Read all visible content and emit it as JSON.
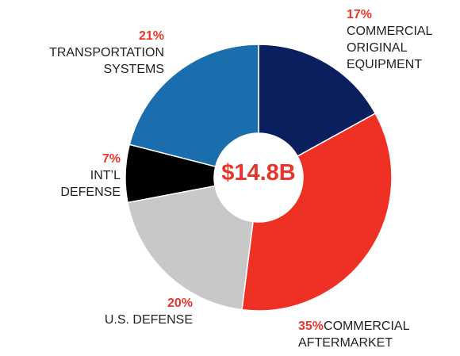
{
  "chart_data": {
    "type": "donut",
    "center_label": "$14.8B",
    "categories": [
      "COMMERCIAL\nORIGINAL\nEQUIPMENT",
      "COMMERCIAL\nAFTERMARKET",
      "U.S. DEFENSE",
      "INT’L\nDEFENSE",
      "TRANSPORTATION\nSYSTEMS"
    ],
    "values": [
      17,
      35,
      20,
      7,
      21
    ],
    "value_labels": [
      "17%",
      "35%",
      "20%",
      "7%",
      "21%"
    ],
    "colors": [
      "#0b1f5e",
      "#ee3124",
      "#c8c8c8",
      "#000000",
      "#1a6ead"
    ]
  }
}
